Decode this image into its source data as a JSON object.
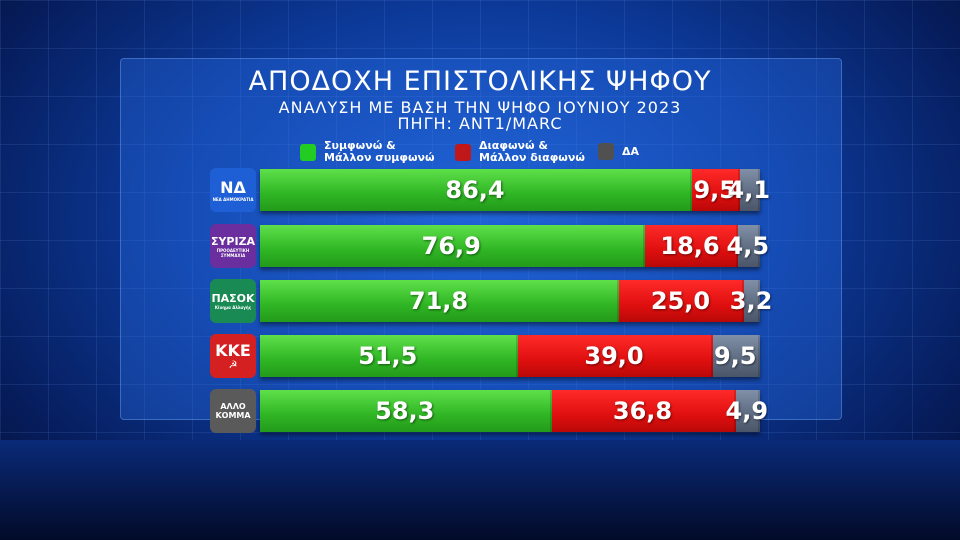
{
  "chart_data": {
    "type": "bar",
    "orientation": "horizontal",
    "stacked": true,
    "title": "ΑΠΟΔΟΧΗ ΕΠΙΣΤΟΛΙΚΗΣ ΨΗΦΟΥ",
    "subtitle": "ΑΝΑΛΥΣΗ ΜΕ ΒΑΣΗ ΤΗΝ ΨΗΦΟ ΙΟΥΝΙΟΥ 2023",
    "source": "ΠΗΓΗ: ΑΝΤ1/MARC",
    "categories": [
      "ΝΔ",
      "ΣΥΡΙΖΑ",
      "ΠΑΣΟΚ",
      "ΚΚΕ",
      "ΑΛΛΟ ΚΟΜΜΑ"
    ],
    "series": [
      {
        "name": "Συμφωνώ & Μάλλον συμφωνώ",
        "key": "agree",
        "color": "#2fb524",
        "values": [
          86.4,
          76.9,
          71.8,
          51.5,
          58.3
        ],
        "labels": [
          "86,4",
          "76,9",
          "71,8",
          "51,5",
          "58,3"
        ]
      },
      {
        "name": "Διαφωνώ & Μάλλον διαφωνώ",
        "key": "disagree",
        "color": "#e00f0f",
        "values": [
          9.5,
          18.6,
          25.0,
          39.0,
          36.8
        ],
        "labels": [
          "9,5",
          "18,6",
          "25,0",
          "39,0",
          "36,8"
        ]
      },
      {
        "name": "ΔΑ",
        "key": "dk",
        "color": "#5d6a80",
        "values": [
          4.1,
          4.5,
          3.2,
          9.5,
          4.9
        ],
        "labels": [
          "4,1",
          "4,5",
          "3,2",
          "9,5",
          "4,9"
        ]
      }
    ],
    "legend": {
      "position": "top",
      "items": [
        {
          "line1": "Συμφωνώ &",
          "line2": "Μάλλον συμφωνώ",
          "color": "#22cc22"
        },
        {
          "line1": "Διαφωνώ &",
          "line2": "Μάλλον διαφωνώ",
          "color": "#c01818"
        },
        {
          "line1": "ΔΑ",
          "line2": "",
          "color": "#505050"
        }
      ]
    }
  },
  "parties": [
    {
      "logo_text": "ΝΔ",
      "logo_sub": "ΝΕΑ ΔΗΜΟΚΡΑΤΙΑ",
      "color": "#1f5fd6"
    },
    {
      "logo_text": "ΣΥΡΙΖΑ",
      "logo_sub": "ΠΡΟΟΔΕΥΤΙΚΗ ΣΥΜΜΑΧΙΑ",
      "color": "#6a2e9e"
    },
    {
      "logo_text": "ΠΑΣΟΚ",
      "logo_sub": "Κίνημα Αλλαγής",
      "color": "#1a8a55"
    },
    {
      "logo_text": "ΚΚΕ",
      "logo_sub": "☭",
      "color": "#d42020"
    },
    {
      "logo_text": "ΑΛΛΟ ΚΟΜΜΑ",
      "logo_sub": "",
      "color": "#5a5a5a"
    }
  ]
}
